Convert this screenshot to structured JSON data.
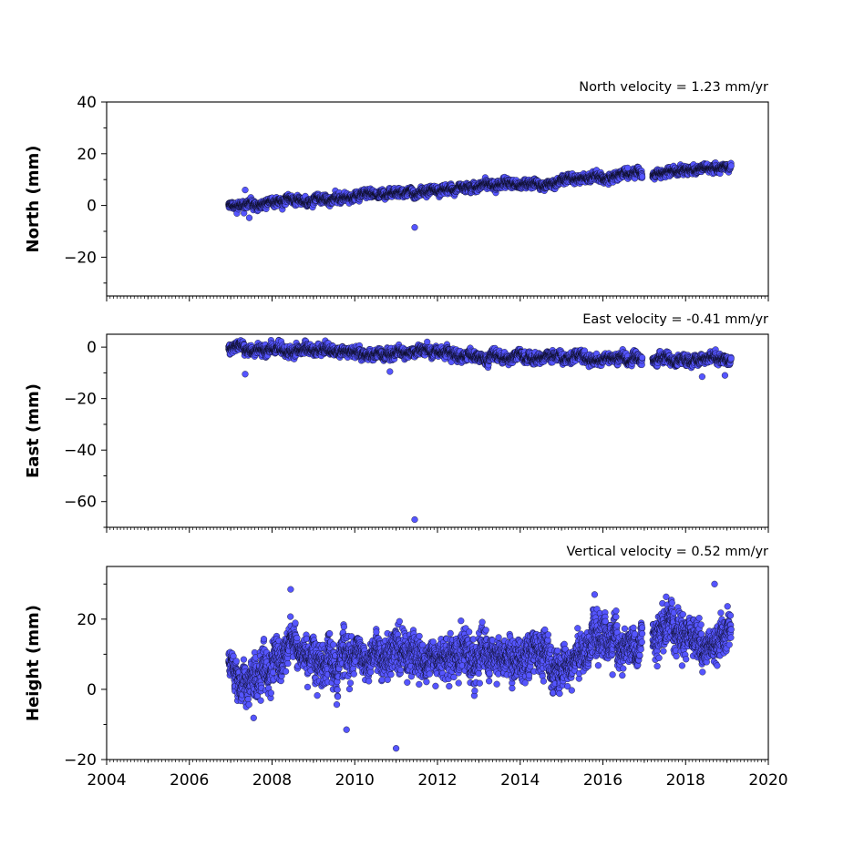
{
  "chart_data": [
    {
      "type": "scatter",
      "title": "North velocity = 1.23 mm/yr",
      "xlabel": "",
      "ylabel": "North (mm)",
      "xlim": [
        2004,
        2020
      ],
      "ylim": [
        -35,
        40
      ],
      "yticks": [
        -20,
        0,
        20,
        40
      ],
      "ytick_labels": [
        "−20",
        "0",
        "20",
        "40"
      ],
      "xticks": [
        2004,
        2006,
        2008,
        2010,
        2012,
        2014,
        2016,
        2018,
        2020
      ],
      "xtick_labels": [],
      "data_span": [
        2006.95,
        2019.1
      ],
      "gap": [
        2016.95,
        2017.2
      ],
      "trend": {
        "slope": 1.23,
        "value_at_2007": 0.0
      },
      "noise_std": 1.2,
      "n_points": 3900,
      "outliers": [
        {
          "x": 2011.45,
          "y": -8.5
        },
        {
          "x": 2007.45,
          "y": -4.8
        },
        {
          "x": 2007.35,
          "y": 6.0
        },
        {
          "x": 2016.6,
          "y": 14.5
        }
      ],
      "marker_color": "#5555ff",
      "marker_edge": "#000000"
    },
    {
      "type": "scatter",
      "title": "East velocity = -0.41 mm/yr",
      "xlabel": "",
      "ylabel": "East (mm)",
      "xlim": [
        2004,
        2020
      ],
      "ylim": [
        -70,
        5
      ],
      "yticks": [
        -60,
        -40,
        -20,
        0
      ],
      "ytick_labels": [
        "−60",
        "−40",
        "−20",
        "0"
      ],
      "xticks": [
        2004,
        2006,
        2008,
        2010,
        2012,
        2014,
        2016,
        2018,
        2020
      ],
      "xtick_labels": [],
      "data_span": [
        2006.95,
        2019.1
      ],
      "gap": [
        2016.95,
        2017.2
      ],
      "trend": {
        "slope": -0.41,
        "value_at_2007": -0.5
      },
      "noise_std": 1.5,
      "n_points": 3900,
      "outliers": [
        {
          "x": 2011.45,
          "y": -67.0
        },
        {
          "x": 2007.35,
          "y": -10.5
        },
        {
          "x": 2010.85,
          "y": -9.5
        },
        {
          "x": 2018.4,
          "y": -11.5
        },
        {
          "x": 2018.95,
          "y": -11.0
        }
      ],
      "marker_color": "#5555ff",
      "marker_edge": "#000000"
    },
    {
      "type": "scatter",
      "title": "Vertical velocity = 0.52 mm/yr",
      "xlabel": "",
      "ylabel": "Height (mm)",
      "xlim": [
        2004,
        2020
      ],
      "ylim": [
        -20,
        35
      ],
      "yticks": [
        -20,
        0,
        20
      ],
      "ytick_labels": [
        "−20",
        "0",
        "20"
      ],
      "xticks": [
        2004,
        2006,
        2008,
        2010,
        2012,
        2014,
        2016,
        2018,
        2020
      ],
      "xtick_labels": [
        "2004",
        "2006",
        "2008",
        "2010",
        "2012",
        "2014",
        "2016",
        "2018",
        "2020"
      ],
      "data_span": [
        2006.95,
        2019.1
      ],
      "gap": [
        2016.95,
        2017.2
      ],
      "trend": {
        "slope": 0.52,
        "value_at_2007": 7.0
      },
      "noise_std": 4.5,
      "n_points": 3900,
      "outliers": [
        {
          "x": 2011.0,
          "y": -16.8
        },
        {
          "x": 2008.45,
          "y": 28.5
        },
        {
          "x": 2018.7,
          "y": 30.0
        },
        {
          "x": 2009.8,
          "y": -11.5
        },
        {
          "x": 2015.8,
          "y": 27.0
        }
      ],
      "marker_color": "#5555ff",
      "marker_edge": "#000000"
    }
  ]
}
